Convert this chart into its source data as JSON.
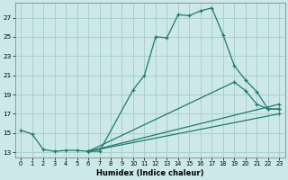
{
  "background_color": "#cce8e8",
  "grid_color": "#aacfcf",
  "line_color": "#1e7a6e",
  "xlabel": "Humidex (Indice chaleur)",
  "xlim": [
    -0.5,
    23.5
  ],
  "ylim": [
    12.5,
    28.5
  ],
  "yticks": [
    13,
    15,
    17,
    19,
    21,
    23,
    25,
    27
  ],
  "xticks": [
    0,
    1,
    2,
    3,
    4,
    5,
    6,
    7,
    8,
    9,
    10,
    11,
    12,
    13,
    14,
    15,
    16,
    17,
    18,
    19,
    20,
    21,
    22,
    23
  ],
  "series1_x": [
    0,
    1,
    2,
    3,
    4,
    5,
    6,
    7,
    10,
    11,
    12,
    13,
    14,
    15,
    16,
    17,
    18,
    19,
    20,
    21,
    22,
    23
  ],
  "series1_y": [
    15.3,
    14.9,
    13.3,
    13.1,
    13.2,
    13.2,
    13.1,
    13.1,
    19.5,
    21.0,
    25.0,
    24.9,
    27.3,
    27.2,
    27.7,
    28.0,
    25.2,
    22.0,
    20.5,
    19.3,
    17.5,
    17.5
  ],
  "line2_x": [
    6,
    19,
    20,
    21,
    22,
    23
  ],
  "line2_y": [
    13.1,
    20.3,
    19.4,
    18.0,
    17.5,
    17.5
  ],
  "line3_x": [
    6,
    23
  ],
  "line3_y": [
    13.1,
    18.0
  ],
  "line4_x": [
    6,
    23
  ],
  "line4_y": [
    13.1,
    17.0
  ]
}
